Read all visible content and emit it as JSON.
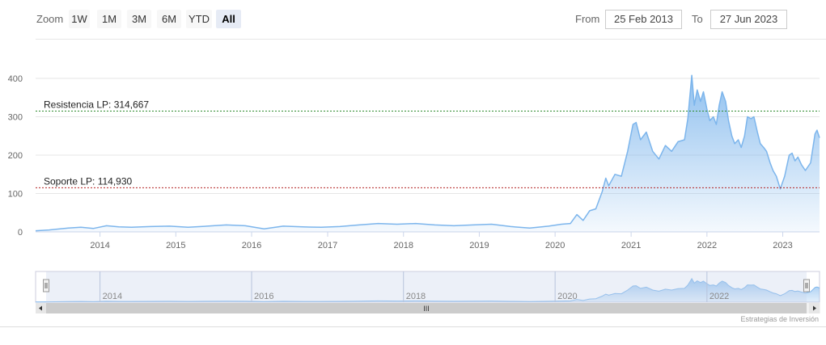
{
  "toolbar": {
    "zoom_label": "Zoom",
    "buttons": [
      "1W",
      "1M",
      "3M",
      "6M",
      "YTD",
      "All"
    ],
    "active_button": "All",
    "from_label": "From",
    "from_value": "25 Feb 2013",
    "to_label": "To",
    "to_value": "27 Jun 2023"
  },
  "credits": "Estrategias de Inversión",
  "navigator": {
    "tick_labels": [
      "2014",
      "2016",
      "2018",
      "2020",
      "2022"
    ],
    "scroll_grip": "III"
  },
  "colors": {
    "line": "#7cb5ec",
    "resistance": "#2e8b2e",
    "support": "#b22222",
    "navigator_mask": "#c8d4ea"
  },
  "chart_data": {
    "type": "area",
    "x_tick_labels": [
      "2014",
      "2015",
      "2016",
      "2017",
      "2018",
      "2019",
      "2020",
      "2021",
      "2022",
      "2023"
    ],
    "y_tick_labels": [
      "0",
      "100",
      "200",
      "300",
      "400"
    ],
    "ylim": [
      0,
      420
    ],
    "xlim": [
      "2013-02-25",
      "2023-06-27"
    ],
    "grid": true,
    "plot_lines": [
      {
        "label": "Resistencia LP: 314,667",
        "value": 314.667,
        "color": "#2e8b2e"
      },
      {
        "label": "Soporte LP: 114,930",
        "value": 114.93,
        "color": "#b22222"
      }
    ],
    "series": [
      {
        "points": [
          [
            "2013-02-25",
            3
          ],
          [
            "2013-05-01",
            5
          ],
          [
            "2013-08-01",
            10
          ],
          [
            "2013-10-01",
            12
          ],
          [
            "2013-12-01",
            9
          ],
          [
            "2014-02-01",
            16
          ],
          [
            "2014-04-01",
            13
          ],
          [
            "2014-06-01",
            12
          ],
          [
            "2014-09-01",
            14
          ],
          [
            "2014-12-01",
            15
          ],
          [
            "2015-03-01",
            12
          ],
          [
            "2015-06-01",
            15
          ],
          [
            "2015-09-01",
            18
          ],
          [
            "2015-12-01",
            16
          ],
          [
            "2016-03-01",
            8
          ],
          [
            "2016-06-01",
            15
          ],
          [
            "2016-09-01",
            13
          ],
          [
            "2016-12-01",
            12
          ],
          [
            "2017-03-01",
            14
          ],
          [
            "2017-06-01",
            18
          ],
          [
            "2017-09-01",
            22
          ],
          [
            "2017-12-01",
            20
          ],
          [
            "2018-03-01",
            22
          ],
          [
            "2018-06-01",
            18
          ],
          [
            "2018-09-01",
            16
          ],
          [
            "2018-12-01",
            18
          ],
          [
            "2019-03-01",
            20
          ],
          [
            "2019-06-01",
            14
          ],
          [
            "2019-09-01",
            10
          ],
          [
            "2019-12-01",
            15
          ],
          [
            "2020-02-01",
            20
          ],
          [
            "2020-03-15",
            22
          ],
          [
            "2020-04-15",
            45
          ],
          [
            "2020-05-15",
            30
          ],
          [
            "2020-06-15",
            55
          ],
          [
            "2020-07-15",
            60
          ],
          [
            "2020-08-15",
            105
          ],
          [
            "2020-09-01",
            140
          ],
          [
            "2020-09-15",
            120
          ],
          [
            "2020-10-15",
            150
          ],
          [
            "2020-11-15",
            145
          ],
          [
            "2020-12-15",
            210
          ],
          [
            "2021-01-10",
            280
          ],
          [
            "2021-01-25",
            285
          ],
          [
            "2021-02-15",
            240
          ],
          [
            "2021-03-15",
            260
          ],
          [
            "2021-04-15",
            210
          ],
          [
            "2021-05-15",
            190
          ],
          [
            "2021-06-15",
            225
          ],
          [
            "2021-07-15",
            210
          ],
          [
            "2021-08-15",
            235
          ],
          [
            "2021-09-15",
            240
          ],
          [
            "2021-10-01",
            295
          ],
          [
            "2021-10-20",
            408
          ],
          [
            "2021-11-01",
            330
          ],
          [
            "2021-11-15",
            370
          ],
          [
            "2021-12-01",
            340
          ],
          [
            "2021-12-15",
            365
          ],
          [
            "2022-01-01",
            320
          ],
          [
            "2022-01-15",
            290
          ],
          [
            "2022-02-01",
            300
          ],
          [
            "2022-02-15",
            280
          ],
          [
            "2022-03-01",
            330
          ],
          [
            "2022-03-15",
            365
          ],
          [
            "2022-04-01",
            340
          ],
          [
            "2022-04-15",
            290
          ],
          [
            "2022-05-01",
            250
          ],
          [
            "2022-05-15",
            230
          ],
          [
            "2022-06-01",
            240
          ],
          [
            "2022-06-15",
            220
          ],
          [
            "2022-07-01",
            250
          ],
          [
            "2022-07-15",
            300
          ],
          [
            "2022-08-01",
            295
          ],
          [
            "2022-08-15",
            300
          ],
          [
            "2022-09-01",
            260
          ],
          [
            "2022-09-15",
            230
          ],
          [
            "2022-10-01",
            220
          ],
          [
            "2022-10-15",
            210
          ],
          [
            "2022-11-01",
            180
          ],
          [
            "2022-11-15",
            160
          ],
          [
            "2022-12-01",
            145
          ],
          [
            "2022-12-20",
            112
          ],
          [
            "2023-01-10",
            145
          ],
          [
            "2023-02-01",
            200
          ],
          [
            "2023-02-15",
            205
          ],
          [
            "2023-03-01",
            185
          ],
          [
            "2023-03-15",
            195
          ],
          [
            "2023-04-01",
            175
          ],
          [
            "2023-04-20",
            160
          ],
          [
            "2023-05-15",
            180
          ],
          [
            "2023-06-05",
            255
          ],
          [
            "2023-06-15",
            265
          ],
          [
            "2023-06-27",
            245
          ]
        ]
      }
    ]
  }
}
